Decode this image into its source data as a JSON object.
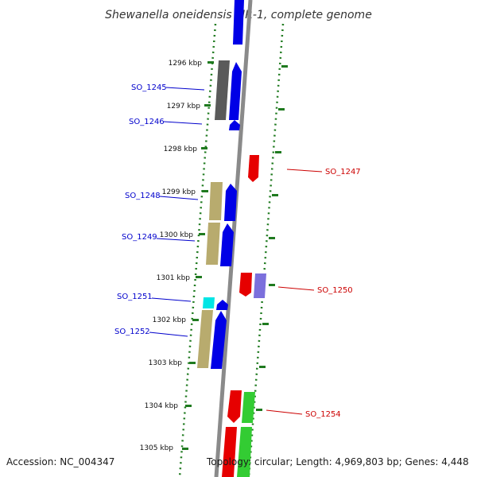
{
  "title": "Shewanella oneidensis MR-1, complete genome",
  "accession": "Accession: NC_004347",
  "summary": "Topology: circular; Length: 4,969,803 bp; Genes: 4,448",
  "colors": {
    "backbone": "#8a8a8a",
    "tick": "#1f7a1f",
    "forward_gene": "#0000e6",
    "reverse_gene": "#e60000",
    "gray_feature": "#5a5a5a",
    "tan_feature": "#b8ab6e",
    "cyan_feature": "#00e5e5",
    "purple_feature": "#7b6fdc",
    "green_feature": "#33cc33",
    "label_left": "#0000cc",
    "label_right": "#cc0000"
  },
  "kbp_labels": [
    "1296 kbp",
    "1297 kbp",
    "1298 kbp",
    "1299 kbp",
    "1300 kbp",
    "1301 kbp",
    "1302 kbp",
    "1303 kbp",
    "1304 kbp",
    "1305 kbp"
  ],
  "genes_left": [
    "SO_1245",
    "SO_1246",
    "SO_1248",
    "SO_1249",
    "SO_1251",
    "SO_1252"
  ],
  "genes_right": [
    "SO_1247",
    "SO_1250",
    "SO_1254"
  ]
}
